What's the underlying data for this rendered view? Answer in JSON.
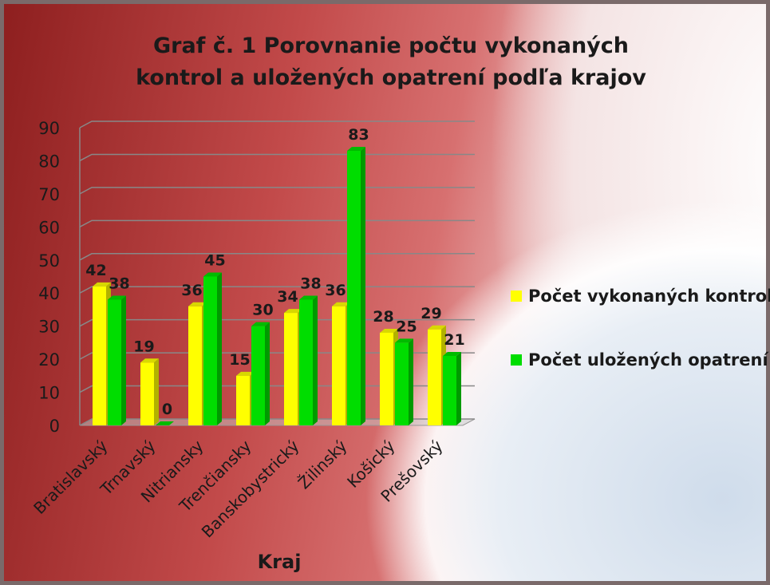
{
  "chart_data": {
    "type": "bar",
    "title": "Graf č. 1 Porovnanie počtu vykonaných kontrol a uložených opatrení podľa krajov",
    "x_label": "Kraj",
    "categories": [
      "Bratislavský",
      "Trnavský",
      "Nitriansky",
      "Trenčiansky",
      "Banskobystrický",
      "Žilinský",
      "Košický",
      "Prešovský"
    ],
    "series": [
      {
        "name": "Počet vykonaných kontrol",
        "color": "#ffff00",
        "values": [
          42,
          19,
          36,
          15,
          34,
          36,
          28,
          29
        ]
      },
      {
        "name": "Počet uložených opatrení",
        "color": "#00dd00",
        "values": [
          38,
          0,
          45,
          30,
          38,
          83,
          25,
          21
        ]
      }
    ],
    "ylim": [
      0,
      90
    ],
    "yticks": [
      0,
      10,
      20,
      30,
      40,
      50,
      60,
      70,
      80,
      90
    ],
    "grid": true,
    "legend": "right"
  }
}
